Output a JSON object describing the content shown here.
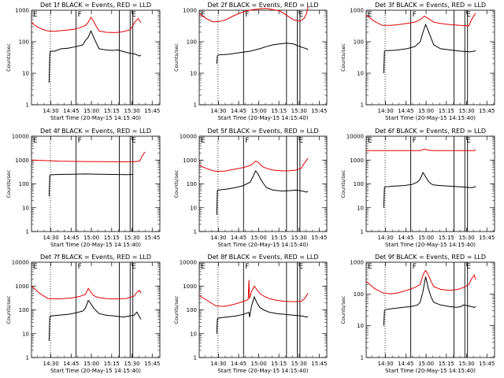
{
  "colors": {
    "events": "#000000",
    "lld": "#e00000",
    "background": "#ffffff"
  },
  "x_tick_labels": [
    "14:30",
    "14:45",
    "15:00",
    "15:15",
    "15:30",
    "15:45"
  ],
  "y_tick_labels": [
    "1",
    "10",
    "100",
    "1000",
    "10000"
  ],
  "xlabel": "Start Time (20-May-15 14:15:40)",
  "ylabel": "Counts/sec",
  "markers": [
    "E",
    "F",
    "E"
  ],
  "chart_data": [
    {
      "type": "line",
      "title": "Det 1f BLACK = Events, RED = LLD",
      "x_unit": "minutes after 14:15:40",
      "xlim": [
        0,
        95
      ],
      "ylim": [
        1,
        1000
      ],
      "y_scale": "log",
      "series": [
        {
          "name": "Events",
          "x": [
            13,
            13.5,
            14,
            17,
            22,
            27,
            33,
            38,
            40,
            42,
            44,
            46,
            48,
            50,
            55,
            60,
            64,
            67,
            71,
            77,
            80,
            81
          ],
          "values": [
            5,
            40,
            50,
            50,
            60,
            62,
            70,
            80,
            110,
            140,
            220,
            140,
            90,
            60,
            55,
            53,
            55,
            50,
            45,
            40,
            35,
            38
          ]
        },
        {
          "name": "LLD",
          "x": [
            0,
            4,
            8,
            12,
            17,
            22,
            26,
            31,
            35,
            40,
            42,
            44,
            46,
            48,
            50,
            55,
            62,
            67,
            73,
            77,
            79,
            81
          ],
          "values": [
            400,
            300,
            250,
            220,
            215,
            225,
            235,
            245,
            270,
            330,
            420,
            600,
            450,
            300,
            220,
            200,
            195,
            205,
            240,
            450,
            550,
            400
          ]
        }
      ],
      "vlines_dotted": [
        14
      ],
      "vlines_solid": [
        33,
        65,
        73,
        75
      ]
    },
    {
      "type": "line",
      "title": "Det 2f BLACK = Events, RED = LLD",
      "x_unit": "minutes after 14:15:40",
      "xlim": [
        0,
        95
      ],
      "ylim": [
        1,
        1000
      ],
      "y_scale": "log",
      "series": [
        {
          "name": "Events",
          "x": [
            13,
            13.5,
            14,
            22,
            30,
            38,
            45,
            50,
            55,
            60,
            65,
            70,
            75,
            80,
            81
          ],
          "values": [
            20,
            35,
            38,
            40,
            45,
            50,
            60,
            70,
            80,
            85,
            90,
            85,
            70,
            60,
            55
          ]
        },
        {
          "name": "LLD",
          "x": [
            0,
            5,
            10,
            15,
            20,
            25,
            30,
            35,
            40,
            45,
            50,
            55,
            60,
            65,
            70,
            75,
            78,
            80,
            81
          ],
          "values": [
            800,
            550,
            430,
            440,
            500,
            650,
            800,
            950,
            1050,
            1100,
            1150,
            1050,
            950,
            700,
            500,
            450,
            550,
            800,
            1300
          ]
        }
      ],
      "vlines_dotted": [
        14
      ],
      "vlines_solid": [
        33,
        65,
        73,
        75
      ]
    },
    {
      "type": "line",
      "title": "Det 3f BLACK = Events, RED = LLD",
      "x_unit": "minutes after 14:15:40",
      "xlim": [
        0,
        95
      ],
      "ylim": [
        1,
        1000
      ],
      "y_scale": "log",
      "series": [
        {
          "name": "Events",
          "x": [
            13,
            13.5,
            14,
            22,
            30,
            36,
            40,
            42,
            44,
            46,
            48,
            50,
            55,
            62,
            70,
            77,
            80,
            81
          ],
          "values": [
            10,
            50,
            52,
            54,
            60,
            70,
            100,
            200,
            350,
            220,
            130,
            80,
            60,
            55,
            50,
            48,
            50,
            52
          ]
        },
        {
          "name": "LLD",
          "x": [
            0,
            6,
            12,
            18,
            24,
            30,
            36,
            40,
            43,
            46,
            50,
            55,
            62,
            70,
            76,
            78,
            80,
            81
          ],
          "values": [
            700,
            450,
            330,
            330,
            350,
            380,
            420,
            500,
            650,
            550,
            420,
            380,
            350,
            330,
            320,
            500,
            700,
            800
          ]
        }
      ],
      "vlines_dotted": [
        14
      ],
      "vlines_solid": [
        33,
        65,
        73,
        75
      ]
    },
    {
      "type": "line",
      "title": "Det 4f BLACK = Events, RED = LLD",
      "x_unit": "minutes after 14:15:40",
      "xlim": [
        0,
        95
      ],
      "ylim": [
        1,
        10000
      ],
      "y_scale": "log",
      "series": [
        {
          "name": "Events",
          "x": [
            13,
            13.5,
            14,
            20,
            30,
            40,
            50,
            60,
            70,
            75
          ],
          "values": [
            30,
            220,
            240,
            250,
            255,
            260,
            255,
            250,
            245,
            250
          ]
        },
        {
          "name": "LLD",
          "x": [
            0,
            10,
            20,
            30,
            40,
            50,
            60,
            70,
            75,
            80,
            82,
            84
          ],
          "values": [
            1000,
            950,
            900,
            880,
            870,
            860,
            850,
            840,
            850,
            900,
            1500,
            2200
          ]
        }
      ],
      "vlines_dotted": [
        14
      ],
      "vlines_solid": [
        33,
        65,
        73,
        75
      ]
    },
    {
      "type": "line",
      "title": "Det 5f BLACK = Events, RED = LLD",
      "x_unit": "minutes after 14:15:40",
      "xlim": [
        0,
        95
      ],
      "ylim": [
        1,
        10000
      ],
      "y_scale": "log",
      "series": [
        {
          "name": "Events",
          "x": [
            13,
            13.5,
            14,
            20,
            27,
            33,
            38,
            40,
            42,
            44,
            46,
            48,
            50,
            55,
            62,
            67,
            72,
            77,
            80,
            81
          ],
          "values": [
            5,
            50,
            55,
            60,
            70,
            85,
            120,
            200,
            350,
            250,
            150,
            100,
            70,
            55,
            50,
            52,
            55,
            50,
            45,
            48
          ]
        },
        {
          "name": "LLD",
          "x": [
            0,
            5,
            10,
            15,
            20,
            25,
            30,
            35,
            38,
            40,
            42,
            44,
            46,
            48,
            50,
            55,
            62,
            67,
            72,
            76,
            78,
            80,
            81
          ],
          "values": [
            600,
            450,
            360,
            330,
            350,
            400,
            450,
            520,
            600,
            700,
            900,
            800,
            600,
            500,
            450,
            380,
            350,
            360,
            380,
            450,
            700,
            1000,
            1200
          ]
        }
      ],
      "vlines_dotted": [
        14
      ],
      "vlines_solid": [
        33,
        65,
        73,
        75
      ]
    },
    {
      "type": "line",
      "title": "Det 6f BLACK = Events, RED = LLD",
      "x_unit": "minutes after 14:15:40",
      "xlim": [
        0,
        95
      ],
      "ylim": [
        1,
        10000
      ],
      "y_scale": "log",
      "series": [
        {
          "name": "Events",
          "x": [
            13,
            13.5,
            14,
            20,
            28,
            34,
            38,
            40,
            42,
            44,
            46,
            48,
            50,
            55,
            62,
            70,
            77,
            80,
            81
          ],
          "values": [
            10,
            70,
            75,
            80,
            85,
            95,
            120,
            160,
            300,
            200,
            130,
            100,
            90,
            85,
            80,
            75,
            70,
            72,
            80
          ]
        },
        {
          "name": "LLD",
          "x": [
            0,
            10,
            20,
            30,
            40,
            43,
            46,
            50,
            60,
            70,
            77,
            80,
            81
          ],
          "values": [
            2500,
            2500,
            2500,
            2500,
            2500,
            2900,
            2600,
            2500,
            2500,
            2500,
            2500,
            2500,
            2800
          ]
        }
      ],
      "vlines_dotted": [
        14
      ],
      "vlines_solid": [
        33,
        65,
        73,
        75
      ]
    },
    {
      "type": "line",
      "title": "Det 7f BLACK = Events, RED = LLD",
      "x_unit": "minutes after 14:15:40",
      "xlim": [
        0,
        95
      ],
      "ylim": [
        1,
        10000
      ],
      "y_scale": "log",
      "series": [
        {
          "name": "Events",
          "x": [
            13,
            13.5,
            14,
            20,
            27,
            33,
            38,
            40,
            42,
            44,
            46,
            48,
            50,
            55,
            62,
            68,
            72,
            76,
            78,
            80,
            81
          ],
          "values": [
            5,
            50,
            55,
            60,
            65,
            75,
            90,
            120,
            250,
            180,
            120,
            90,
            70,
            60,
            55,
            50,
            55,
            60,
            80,
            50,
            40
          ]
        },
        {
          "name": "LLD",
          "x": [
            0,
            6,
            12,
            18,
            24,
            30,
            36,
            40,
            42,
            44,
            46,
            48,
            50,
            55,
            62,
            70,
            76,
            78,
            80,
            81
          ],
          "values": [
            1000,
            500,
            300,
            290,
            300,
            320,
            370,
            450,
            800,
            550,
            400,
            350,
            330,
            300,
            290,
            300,
            380,
            550,
            650,
            500
          ]
        }
      ],
      "vlines_dotted": [
        14
      ],
      "vlines_solid": [
        33,
        65,
        73,
        75
      ]
    },
    {
      "type": "line",
      "title": "Det 8f BLACK = Events, RED = LLD",
      "x_unit": "minutes after 14:15:40",
      "xlim": [
        0,
        95
      ],
      "ylim": [
        1,
        10000
      ],
      "y_scale": "log",
      "series": [
        {
          "name": "Events",
          "x": [
            13,
            13.5,
            14,
            20,
            27,
            33,
            37,
            37.5,
            39,
            41,
            43,
            45,
            48,
            52,
            58,
            64,
            70,
            77,
            80,
            81
          ],
          "values": [
            10,
            40,
            45,
            50,
            55,
            65,
            80,
            50,
            150,
            350,
            200,
            130,
            100,
            80,
            70,
            65,
            60,
            55,
            50,
            52
          ]
        },
        {
          "name": "LLD",
          "x": [
            0,
            6,
            12,
            18,
            24,
            30,
            35,
            36.5,
            37,
            37.5,
            39,
            41,
            43,
            45,
            48,
            52,
            58,
            64,
            70,
            76,
            78,
            80,
            81
          ],
          "values": [
            400,
            250,
            150,
            140,
            160,
            200,
            250,
            280,
            1800,
            300,
            600,
            1000,
            700,
            500,
            380,
            300,
            250,
            230,
            220,
            230,
            280,
            400,
            500
          ]
        }
      ],
      "vlines_dotted": [
        14
      ],
      "vlines_solid": [
        33,
        65,
        73,
        75
      ]
    },
    {
      "type": "line",
      "title": "Det 9f BLACK = Events, RED = LLD",
      "x_unit": "minutes after 14:15:40",
      "xlim": [
        0,
        95
      ],
      "ylim": [
        1,
        1000
      ],
      "y_scale": "log",
      "series": [
        {
          "name": "Events",
          "x": [
            13,
            13.5,
            14,
            20,
            27,
            33,
            38,
            40,
            42,
            44,
            46,
            48,
            50,
            55,
            62,
            67,
            70,
            72,
            76,
            80,
            81
          ],
          "values": [
            10,
            30,
            32,
            35,
            38,
            40,
            45,
            55,
            120,
            350,
            150,
            80,
            55,
            45,
            40,
            38,
            40,
            45,
            42,
            38,
            40
          ]
        },
        {
          "name": "LLD",
          "x": [
            0,
            6,
            12,
            18,
            24,
            30,
            36,
            40,
            42,
            44,
            46,
            48,
            50,
            55,
            62,
            68,
            72,
            76,
            78,
            80,
            81
          ],
          "values": [
            250,
            150,
            110,
            100,
            110,
            130,
            160,
            200,
            400,
            550,
            400,
            250,
            170,
            140,
            130,
            140,
            160,
            200,
            300,
            400,
            280
          ]
        }
      ],
      "vlines_dotted": [
        14
      ],
      "vlines_solid": [
        33,
        65,
        73,
        75
      ]
    }
  ]
}
